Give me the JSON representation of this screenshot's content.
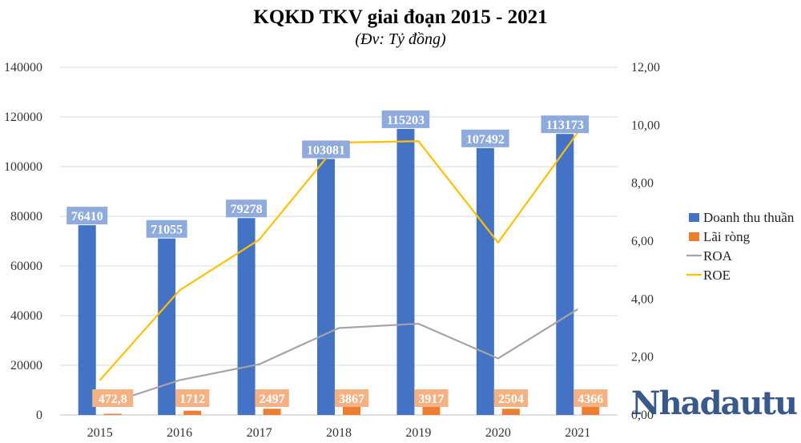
{
  "title": "KQKD TKV giai đoạn 2015 - 2021",
  "subtitle": "(Đv: Tỷ đồng)",
  "watermark": "Nhadautu",
  "colors": {
    "revenue": "#4472c4",
    "revenue_label_bg": "#8faadc",
    "profit": "#ed7d31",
    "profit_label_bg": "#f4b183",
    "roa": "#a5a5a5",
    "roe": "#ffc000",
    "grid": "#d9d9d9"
  },
  "chart_data": {
    "type": "bar",
    "title": "KQKD TKV giai đoạn 2015 - 2021",
    "subtitle": "(Đv: Tỷ đồng)",
    "categories": [
      "2015",
      "2016",
      "2017",
      "2018",
      "2019",
      "2020",
      "2021"
    ],
    "y_left": {
      "min": 0,
      "max": 140000,
      "step": 20000,
      "ticks": [
        "0",
        "20000",
        "40000",
        "60000",
        "80000",
        "100000",
        "120000",
        "140000"
      ]
    },
    "y_right": {
      "min": 0,
      "max": 12,
      "step": 2,
      "ticks": [
        "0,00",
        "2,00",
        "4,00",
        "6,00",
        "8,00",
        "10,00",
        "12,00"
      ]
    },
    "grid": true,
    "legend_position": "right",
    "series": [
      {
        "name": "Doanh thu thuần",
        "type": "bar",
        "axis": "left",
        "values": [
          76410,
          71055,
          79278,
          103081,
          115203,
          107492,
          113173
        ],
        "labels": [
          "76410",
          "71055",
          "79278",
          "103081",
          "115203",
          "107492",
          "113173"
        ]
      },
      {
        "name": "Lãi ròng",
        "type": "bar",
        "axis": "left",
        "values": [
          472.8,
          1712,
          2497,
          3867,
          3917,
          2504,
          4366
        ],
        "labels": [
          "472,8",
          "1712",
          "2497",
          "3867",
          "3917",
          "2504",
          "4366"
        ]
      },
      {
        "name": "ROA",
        "type": "line",
        "axis": "right",
        "values": [
          0.3,
          1.2,
          1.75,
          3.0,
          3.15,
          1.95,
          3.65
        ]
      },
      {
        "name": "ROE",
        "type": "line",
        "axis": "right",
        "values": [
          1.2,
          4.3,
          6.05,
          9.4,
          9.45,
          5.95,
          9.75
        ]
      }
    ]
  }
}
